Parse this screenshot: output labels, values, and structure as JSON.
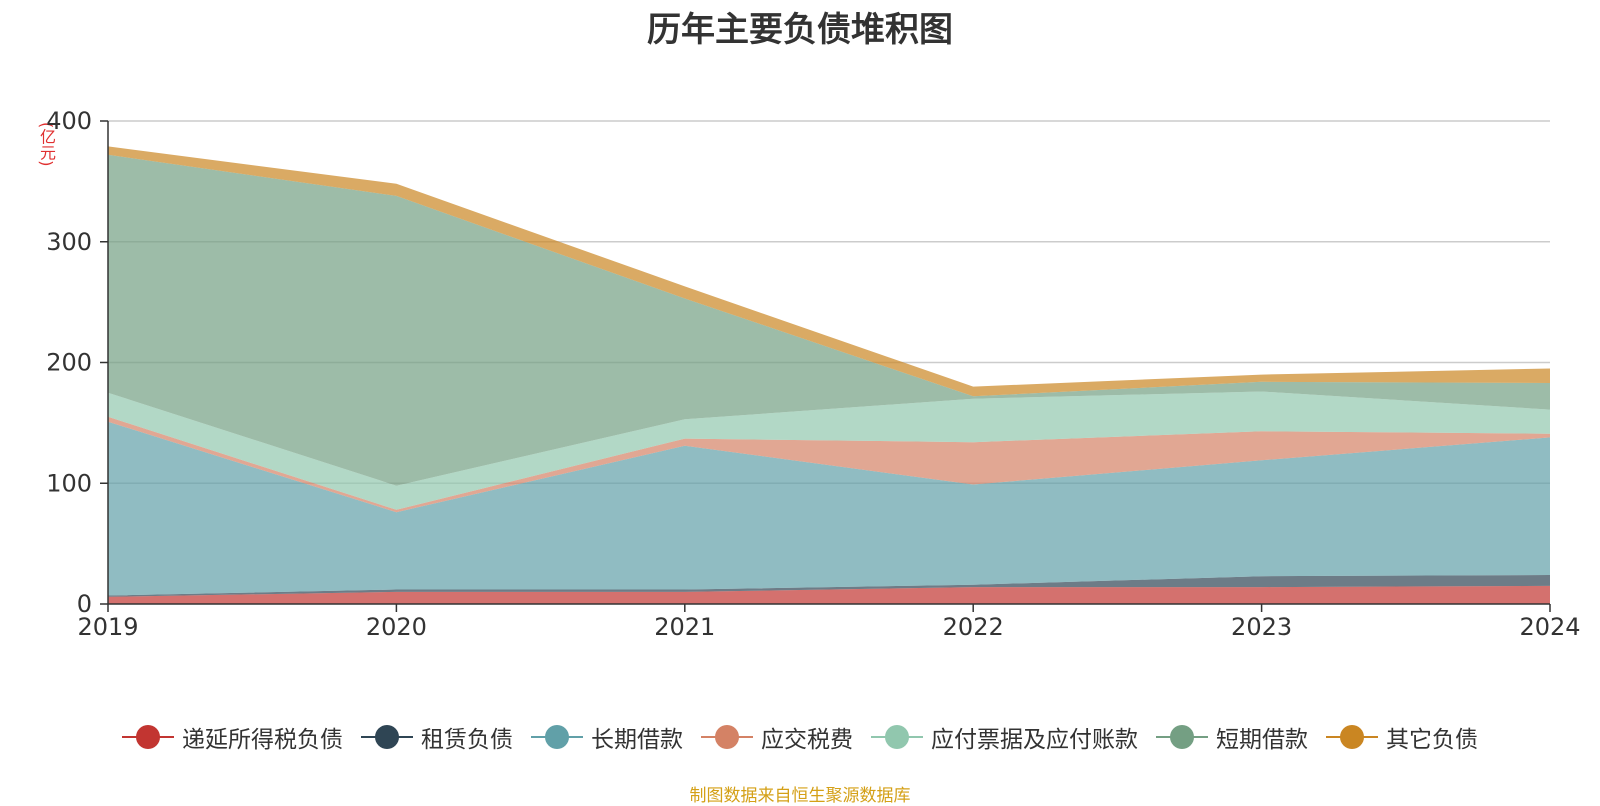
{
  "title": "历年主要负债堆积图",
  "source_note": "制图数据来自恒生聚源数据库",
  "chart_data": {
    "type": "area",
    "stacked": true,
    "title": "历年主要负债堆积图",
    "ylabel": "(亿元)",
    "ylim": [
      0,
      400
    ],
    "yticks": [
      0,
      100,
      200,
      300,
      400
    ],
    "grid": true,
    "legend_position": "bottom",
    "x": [
      "2019",
      "2020",
      "2021",
      "2022",
      "2023",
      "2024"
    ],
    "series": [
      {
        "name": "递延所得税负债",
        "color": "#c23531",
        "values": [
          6,
          10,
          10,
          14,
          14,
          15
        ]
      },
      {
        "name": "租赁负债",
        "color": "#2f4554",
        "values": [
          1,
          2,
          2,
          2,
          9,
          9
        ]
      },
      {
        "name": "长期借款",
        "color": "#61a0a8",
        "values": [
          144,
          64,
          119,
          83,
          96,
          114
        ]
      },
      {
        "name": "应交税费",
        "color": "#d48265",
        "values": [
          4,
          2,
          6,
          35,
          24,
          3
        ]
      },
      {
        "name": "应付票据及应付账款",
        "color": "#91c7ae",
        "values": [
          20,
          20,
          16,
          36,
          33,
          20
        ]
      },
      {
        "name": "短期借款",
        "color": "#749f83",
        "values": [
          197,
          240,
          100,
          2,
          8,
          22
        ]
      },
      {
        "name": "其它负债",
        "color": "#ca8622",
        "values": [
          7,
          10,
          10,
          8,
          6,
          12
        ]
      }
    ]
  }
}
